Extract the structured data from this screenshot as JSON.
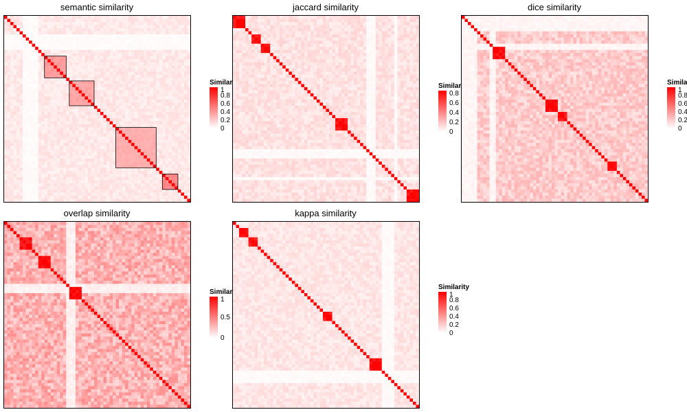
{
  "colors": {
    "low": "#ffffff",
    "high": "#ff0000",
    "border": "#000000"
  },
  "chart_data": [
    {
      "type": "heatmap",
      "title": "semantic similarity",
      "legend": {
        "title": "Similarity",
        "ticks": [
          "1",
          "0.8",
          "0.6",
          "0.4",
          "0.2",
          "0"
        ],
        "tick_values": [
          1,
          0.8,
          0.6,
          0.4,
          0.2,
          0
        ],
        "range": [
          0,
          1
        ]
      },
      "n": 60,
      "background_value": 0.09,
      "diagonal_value": 1.0,
      "clusters": [
        {
          "start": 13,
          "end": 19,
          "value": 0.42
        },
        {
          "start": 21,
          "end": 28,
          "value": 0.38
        },
        {
          "start": 36,
          "end": 48,
          "value": 0.34
        },
        {
          "start": 51,
          "end": 55,
          "value": 0.5
        }
      ],
      "pale_bands": [
        6,
        7,
        8,
        9,
        10
      ]
    },
    {
      "type": "heatmap",
      "title": "jaccard similarity",
      "legend": {
        "title": "Similarity",
        "ticks": [
          "0.8",
          "0.6",
          "0.4",
          "0.2",
          "0"
        ],
        "tick_values": [
          0.8,
          0.6,
          0.4,
          0.2,
          0
        ],
        "range": [
          0,
          0.85
        ]
      },
      "n": 60,
      "background_value": 0.1,
      "diagonal_value": 0.85,
      "clusters": [
        {
          "start": 0,
          "end": 3,
          "value": 0.85
        },
        {
          "start": 6,
          "end": 8,
          "value": 0.85
        },
        {
          "start": 9,
          "end": 11,
          "value": 0.85
        },
        {
          "start": 33,
          "end": 36,
          "value": 0.85
        },
        {
          "start": 56,
          "end": 59,
          "value": 0.85
        }
      ],
      "pale_bands": [
        43,
        44,
        45,
        52
      ]
    },
    {
      "type": "heatmap",
      "title": "dice similarity",
      "legend": {
        "title": "Similarity",
        "ticks": [
          "1",
          "0.8",
          "0.6",
          "0.4",
          "0.2",
          "0"
        ],
        "tick_values": [
          1,
          0.8,
          0.6,
          0.4,
          0.2,
          0
        ],
        "range": [
          0,
          1
        ]
      },
      "n": 60,
      "background_value": 0.2,
      "diagonal_value": 1.0,
      "clusters": [
        {
          "start": 10,
          "end": 13,
          "value": 1.0
        },
        {
          "start": 27,
          "end": 30,
          "value": 1.0
        },
        {
          "start": 31,
          "end": 33,
          "value": 1.0
        },
        {
          "start": 47,
          "end": 49,
          "value": 1.0
        }
      ],
      "pale_bands": [
        0,
        1,
        2,
        3,
        4,
        9,
        10
      ]
    },
    {
      "type": "heatmap",
      "title": "overlap similarity",
      "legend": {
        "title": "Similarity",
        "ticks": [
          "1",
          "0.5",
          "0"
        ],
        "tick_values": [
          1,
          0.5,
          0
        ],
        "range": [
          0,
          1
        ]
      },
      "n": 60,
      "background_value": 0.3,
      "diagonal_value": 1.0,
      "clusters": [
        {
          "start": 5,
          "end": 8,
          "value": 1.0
        },
        {
          "start": 11,
          "end": 14,
          "value": 1.0
        },
        {
          "start": 21,
          "end": 24,
          "value": 1.0
        }
      ],
      "pale_bands": [
        20,
        21,
        22
      ]
    },
    {
      "type": "heatmap",
      "title": "kappa similarity",
      "legend": {
        "title": "Similarity",
        "ticks": [
          "1",
          "0.8",
          "0.6",
          "0.4",
          "0.2",
          "0"
        ],
        "tick_values": [
          1,
          0.8,
          0.6,
          0.4,
          0.2,
          0
        ],
        "range": [
          0,
          1
        ]
      },
      "n": 60,
      "background_value": 0.1,
      "diagonal_value": 1.0,
      "clusters": [
        {
          "start": 2,
          "end": 4,
          "value": 1.0
        },
        {
          "start": 5,
          "end": 7,
          "value": 1.0
        },
        {
          "start": 29,
          "end": 31,
          "value": 1.0
        },
        {
          "start": 44,
          "end": 47,
          "value": 1.0
        }
      ],
      "pale_bands": [
        48,
        49,
        50,
        51
      ]
    }
  ]
}
